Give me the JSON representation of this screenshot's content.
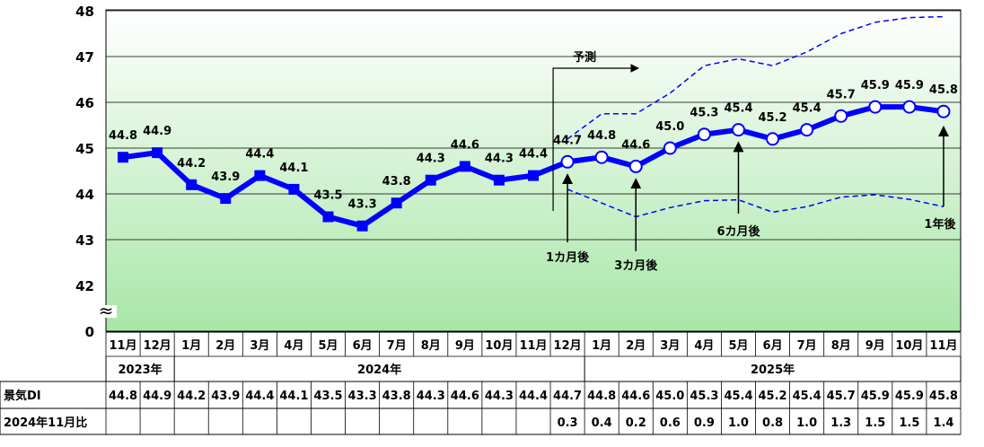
{
  "chart_data": {
    "type": "line",
    "title": "",
    "xlabel": "",
    "ylabel": "",
    "ylim": [
      42,
      48
    ],
    "y_ticks": [
      "48",
      "47",
      "46",
      "45",
      "44",
      "43",
      "42",
      "0"
    ],
    "axis_break": "≈",
    "grid": true,
    "categories": [
      "11月",
      "12月",
      "1月",
      "2月",
      "3月",
      "4月",
      "5月",
      "6月",
      "7月",
      "8月",
      "9月",
      "10月",
      "11月",
      "12月",
      "1月",
      "2月",
      "3月",
      "4月",
      "5月",
      "6月",
      "7月",
      "8月",
      "9月",
      "10月",
      "11月"
    ],
    "years": [
      {
        "label": "2023年",
        "from": 0,
        "to": 1
      },
      {
        "label": "2024年",
        "from": 2,
        "to": 13
      },
      {
        "label": "2025年",
        "from": 14,
        "to": 24
      }
    ],
    "series": [
      {
        "values": [
          44.8,
          44.9,
          44.2,
          43.9,
          44.4,
          44.1,
          43.5,
          43.3,
          43.8,
          44.3,
          44.6,
          44.3,
          44.4,
          44.7,
          44.8,
          44.6,
          45.0,
          45.3,
          45.4,
          45.2,
          45.4,
          45.7,
          45.9,
          45.9,
          45.8
        ],
        "forecast_from": 13
      }
    ],
    "point_labels": [
      "44.8",
      "44.9",
      "44.2",
      "43.9",
      "44.4",
      "44.1",
      "43.5",
      "43.3",
      "43.8",
      "44.3",
      "44.6",
      "44.3",
      "44.4",
      "44.7",
      "44.8",
      "44.6",
      "45.0",
      "45.3",
      "45.4",
      "45.2",
      "45.4",
      "45.7",
      "45.9",
      "45.9",
      "45.8"
    ],
    "upper_band": [
      45.2,
      45.75,
      45.75,
      46.2,
      46.8,
      46.95,
      46.8,
      47.1,
      47.5,
      47.75,
      47.85,
      47.87
    ],
    "lower_band": [
      44.1,
      43.8,
      43.5,
      43.7,
      43.85,
      43.87,
      43.6,
      43.72,
      43.93,
      43.98,
      43.88,
      43.72
    ],
    "band_start": 13,
    "annotations": {
      "forecast": "予測",
      "callouts": [
        {
          "text": "1カ月後",
          "index": 13
        },
        {
          "text": "3カ月後",
          "index": 15
        },
        {
          "text": "6カ月後",
          "index": 18
        },
        {
          "text": "1年後",
          "index": 24
        }
      ]
    },
    "table": {
      "row_labels": [
        "景気DI",
        "2024年11月比"
      ],
      "di_values": [
        "44.8",
        "44.9",
        "44.2",
        "43.9",
        "44.4",
        "44.1",
        "43.5",
        "43.3",
        "43.8",
        "44.3",
        "44.6",
        "44.3",
        "44.4",
        "44.7",
        "44.8",
        "44.6",
        "45.0",
        "45.3",
        "45.4",
        "45.2",
        "45.4",
        "45.7",
        "45.9",
        "45.9",
        "45.8"
      ],
      "diff_values": [
        "",
        "",
        "",
        "",
        "",
        "",
        "",
        "",
        "",
        "",
        "",
        "",
        "",
        "0.3",
        "0.4",
        "0.2",
        "0.6",
        "0.9",
        "1.0",
        "0.8",
        "1.0",
        "1.3",
        "1.5",
        "1.5",
        "1.4"
      ]
    },
    "colors": {
      "line": "#0000ff",
      "band": "#0000ff",
      "grid": "#000000",
      "bg_top": "#ffffff",
      "bg_bottom": "#a8e6a8"
    }
  }
}
